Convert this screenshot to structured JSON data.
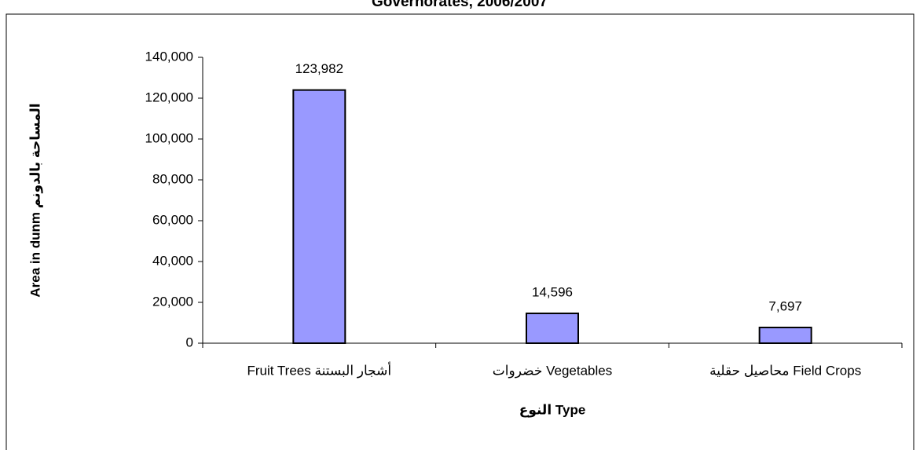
{
  "chart_data": {
    "type": "bar",
    "title": "Governorates, 2006/2007",
    "x_label": "النوع Type",
    "y_label": "Area in dunm المساحة بالدونم",
    "categories": [
      "Fruit Trees  أشجار البستنة",
      "خضروات  Vegetables",
      "محاصيل حقلية  Field Crops"
    ],
    "values": [
      123982,
      14596,
      7697
    ],
    "value_labels": [
      "123,982",
      "14,596",
      "7,697"
    ],
    "color": "#9999ff",
    "ylim": [
      0,
      140000
    ],
    "yticks": [
      0,
      {
        "value": 20000,
        "label": "20,000"
      },
      {
        "value": 40000,
        "label": "40,000"
      },
      {
        "value": 60000,
        "label": "60,000"
      },
      {
        "value": 80000,
        "label": "80,000"
      },
      {
        "value": 100000,
        "label": "100,000"
      },
      {
        "value": 120000,
        "label": "120,000"
      },
      {
        "value": 140000,
        "label": "140,000"
      }
    ],
    "grid": false
  }
}
